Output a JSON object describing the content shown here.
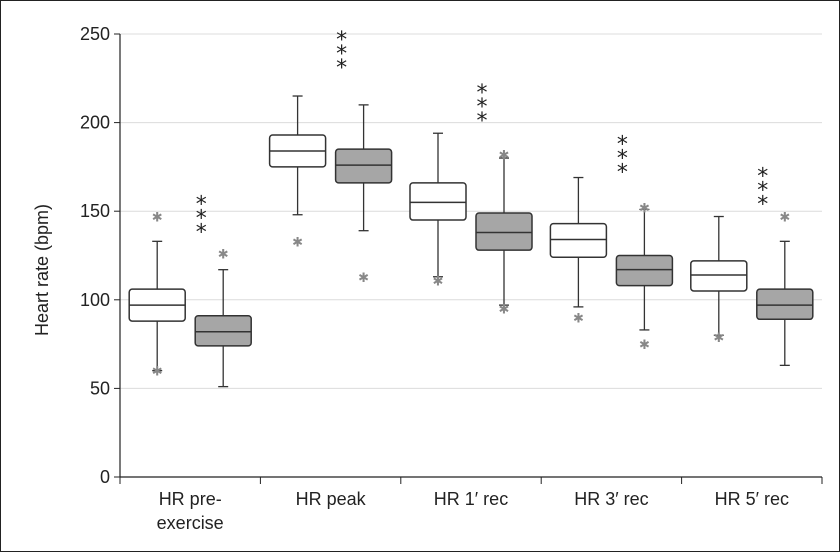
{
  "chart_data": {
    "type": "box",
    "ylabel": "Heart rate (bpm)",
    "ylim": [
      0,
      250
    ],
    "yticks": [
      0,
      50,
      100,
      150,
      200,
      250
    ],
    "grid": true,
    "categories": [
      {
        "lines": [
          "HR pre-",
          "exercise"
        ],
        "significance": "***"
      },
      {
        "lines": [
          "HR peak"
        ],
        "significance": "***"
      },
      {
        "lines": [
          "HR 1′ rec"
        ],
        "significance": "***"
      },
      {
        "lines": [
          "HR 3′ rec"
        ],
        "significance": "***"
      },
      {
        "lines": [
          "HR 5′ rec"
        ],
        "significance": "***"
      }
    ],
    "series": [
      {
        "fill": "#ffffff",
        "boxes": [
          {
            "min": 60,
            "q1": 88,
            "median": 97,
            "q3": 106,
            "max": 133,
            "outliers": [
              147,
              60
            ]
          },
          {
            "min": 148,
            "q1": 175,
            "median": 184,
            "q3": 193,
            "max": 215,
            "outliers": [
              133
            ]
          },
          {
            "min": 113,
            "q1": 145,
            "median": 155,
            "q3": 166,
            "max": 194,
            "outliers": [
              111
            ]
          },
          {
            "min": 96,
            "q1": 124,
            "median": 134,
            "q3": 143,
            "max": 169,
            "outliers": [
              90
            ]
          },
          {
            "min": 80,
            "q1": 105,
            "median": 114,
            "q3": 122,
            "max": 147,
            "outliers": [
              79
            ]
          }
        ]
      },
      {
        "fill": "#a6a6a6",
        "boxes": [
          {
            "min": 51,
            "q1": 74,
            "median": 82,
            "q3": 91,
            "max": 117,
            "outliers": [
              126
            ]
          },
          {
            "min": 139,
            "q1": 166,
            "median": 176,
            "q3": 185,
            "max": 210,
            "outliers": [
              113
            ]
          },
          {
            "min": 97,
            "q1": 128,
            "median": 138,
            "q3": 149,
            "max": 180,
            "outliers": [
              182,
              95
            ]
          },
          {
            "min": 83,
            "q1": 108,
            "median": 117,
            "q3": 125,
            "max": 151,
            "outliers": [
              152,
              75
            ]
          },
          {
            "min": 63,
            "q1": 89,
            "median": 97,
            "q3": 106,
            "max": 133,
            "outliers": [
              147
            ]
          }
        ]
      }
    ],
    "outlier_marker": "✱"
  }
}
